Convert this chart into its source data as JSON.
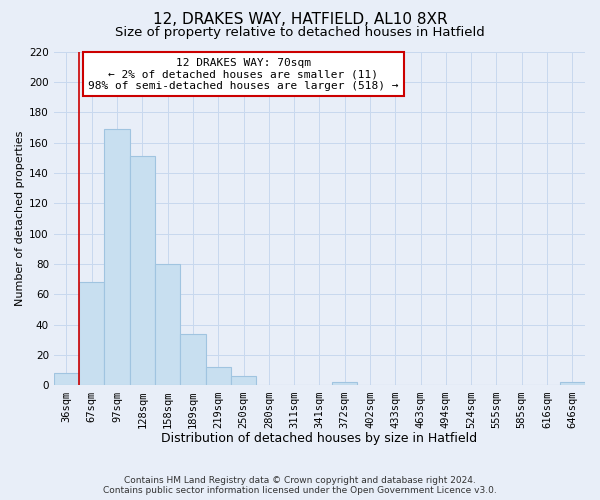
{
  "title": "12, DRAKES WAY, HATFIELD, AL10 8XR",
  "subtitle": "Size of property relative to detached houses in Hatfield",
  "xlabel": "Distribution of detached houses by size in Hatfield",
  "ylabel": "Number of detached properties",
  "bar_labels": [
    "36sqm",
    "67sqm",
    "97sqm",
    "128sqm",
    "158sqm",
    "189sqm",
    "219sqm",
    "250sqm",
    "280sqm",
    "311sqm",
    "341sqm",
    "372sqm",
    "402sqm",
    "433sqm",
    "463sqm",
    "494sqm",
    "524sqm",
    "555sqm",
    "585sqm",
    "616sqm",
    "646sqm"
  ],
  "bar_values": [
    8,
    68,
    169,
    151,
    80,
    34,
    12,
    6,
    0,
    0,
    0,
    2,
    0,
    0,
    0,
    0,
    0,
    0,
    0,
    0,
    2
  ],
  "bar_color": "#c8dff0",
  "bar_edge_color": "#a0c4e0",
  "vline_x": 1,
  "vline_color": "#cc0000",
  "ylim": [
    0,
    220
  ],
  "yticks": [
    0,
    20,
    40,
    60,
    80,
    100,
    120,
    140,
    160,
    180,
    200,
    220
  ],
  "annotation_title": "12 DRAKES WAY: 70sqm",
  "annotation_line1": "← 2% of detached houses are smaller (11)",
  "annotation_line2": "98% of semi-detached houses are larger (518) →",
  "annotation_box_color": "#ffffff",
  "annotation_box_edge_color": "#cc0000",
  "footer1": "Contains HM Land Registry data © Crown copyright and database right 2024.",
  "footer2": "Contains public sector information licensed under the Open Government Licence v3.0.",
  "grid_color": "#c8d8ee",
  "bg_color": "#e8eef8",
  "title_fontsize": 11,
  "subtitle_fontsize": 9.5,
  "xlabel_fontsize": 9,
  "ylabel_fontsize": 8,
  "tick_fontsize": 7.5,
  "footer_fontsize": 6.5,
  "annotation_fontsize": 8
}
